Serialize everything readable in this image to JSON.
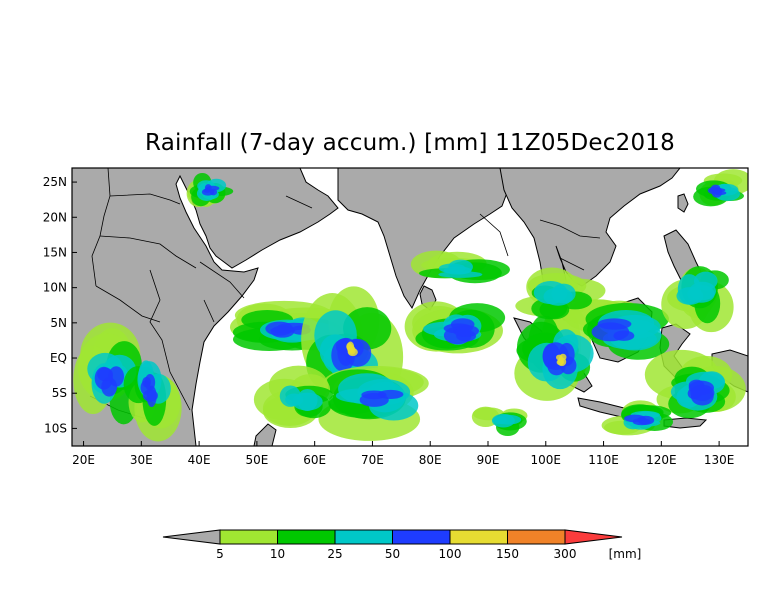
{
  "title": "Rainfall (7-day accum.) [mm] 11Z05Dec2018",
  "map": {
    "lon_range": [
      18,
      135
    ],
    "lat_range": [
      -12.5,
      27
    ],
    "land_color": "#aaaaaa",
    "coast_color": "#000000",
    "x_ticks": [
      "20E",
      "30E",
      "40E",
      "50E",
      "60E",
      "70E",
      "80E",
      "90E",
      "100E",
      "110E",
      "120E",
      "130E"
    ],
    "x_tick_values": [
      20,
      30,
      40,
      50,
      60,
      70,
      80,
      90,
      100,
      110,
      120,
      130
    ],
    "y_ticks": [
      "25N",
      "20N",
      "15N",
      "10N",
      "5N",
      "EQ",
      "5S",
      "10S"
    ],
    "y_tick_values": [
      25,
      20,
      15,
      10,
      5,
      0,
      -5,
      -10
    ]
  },
  "colorbar": {
    "unit": "[mm]",
    "labels": [
      "5",
      "10",
      "25",
      "50",
      "100",
      "150",
      "300"
    ],
    "colors": [
      "#a0e632",
      "#00c800",
      "#00c8c8",
      "#1e3cff",
      "#e6dc32",
      "#f08228",
      "#fa3c3c"
    ],
    "below_color": "#aaaaaa"
  }
}
